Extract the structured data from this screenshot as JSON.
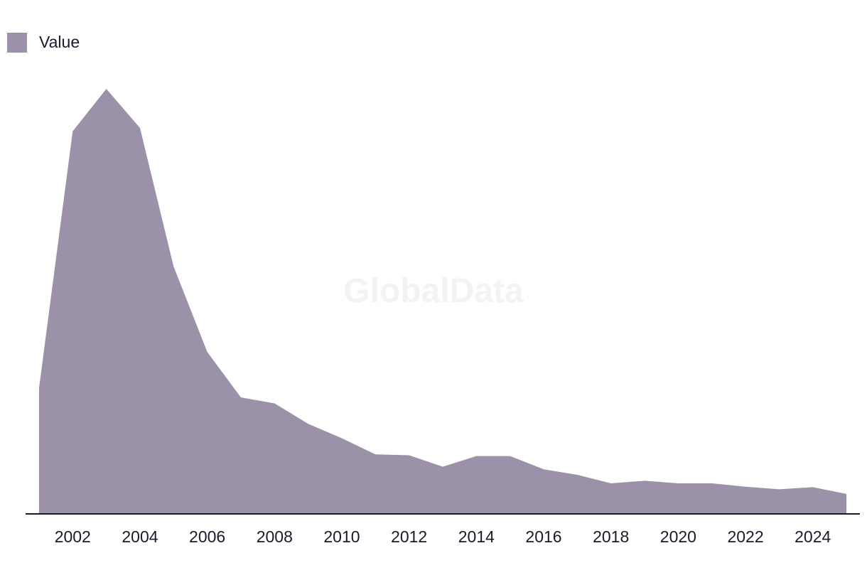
{
  "watermark": "GlobalData",
  "chart_data": {
    "type": "area",
    "x": [
      2001,
      2002,
      2003,
      2004,
      2005,
      2006,
      2007,
      2008,
      2009,
      2010,
      2011,
      2012,
      2013,
      2014,
      2015,
      2016,
      2017,
      2018,
      2019,
      2020,
      2021,
      2022,
      2023,
      2024,
      2025
    ],
    "series": [
      {
        "name": "Value",
        "color": "#9b91a9",
        "values": [
          296,
          900,
          1000,
          908,
          582,
          381,
          274,
          260,
          212,
          178,
          140,
          138,
          111,
          136,
          136,
          105,
          92,
          72,
          78,
          72,
          72,
          64,
          58,
          63,
          47
        ]
      }
    ],
    "xticks": [
      "2002",
      "2004",
      "2006",
      "2008",
      "2010",
      "2012",
      "2014",
      "2016",
      "2018",
      "2020",
      "2022",
      "2024"
    ],
    "xlim": [
      2000.6,
      2025.4
    ],
    "ylim": [
      0,
      1000
    ],
    "title": "",
    "xlabel": "",
    "ylabel": "",
    "grid": false,
    "legend": "top-left",
    "axis_color": "#1a1a2e"
  }
}
